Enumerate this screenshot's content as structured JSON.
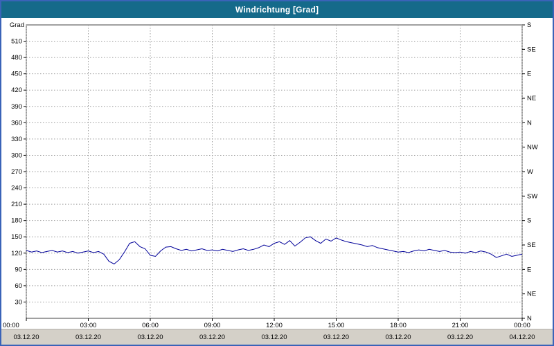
{
  "window": {
    "title": "Windrichtung [Grad]"
  },
  "colors": {
    "titlebar": "#156a8a",
    "frame_border": "#3a63b8",
    "plot_bg": "#ffffff",
    "plot_border": "#404040",
    "grid": "#9a9a9a",
    "line": "#000099",
    "footer_bg": "#d4d0c8",
    "text": "#000000"
  },
  "chart_data": {
    "type": "line",
    "title": "Windrichtung [Grad]",
    "unit_label": "Grad",
    "ylim": [
      0,
      540
    ],
    "grid": "dashed",
    "y_ticks_left": [
      510,
      480,
      450,
      420,
      390,
      360,
      330,
      300,
      270,
      240,
      210,
      180,
      150,
      120,
      90,
      60,
      30
    ],
    "y_ticks_right": [
      {
        "deg": 540,
        "label": "S"
      },
      {
        "deg": 495,
        "label": "SE"
      },
      {
        "deg": 450,
        "label": "E"
      },
      {
        "deg": 405,
        "label": "NE"
      },
      {
        "deg": 360,
        "label": "N"
      },
      {
        "deg": 315,
        "label": "NW"
      },
      {
        "deg": 270,
        "label": "W"
      },
      {
        "deg": 225,
        "label": "SW"
      },
      {
        "deg": 180,
        "label": "S"
      },
      {
        "deg": 135,
        "label": "SE"
      },
      {
        "deg": 90,
        "label": "E"
      },
      {
        "deg": 45,
        "label": "NE"
      },
      {
        "deg": 0,
        "label": "N"
      }
    ],
    "x_ticks": [
      {
        "hour": 0,
        "time": "00:00",
        "date": "03.12.20"
      },
      {
        "hour": 3,
        "time": "03:00",
        "date": "03.12.20"
      },
      {
        "hour": 6,
        "time": "06:00",
        "date": "03.12.20"
      },
      {
        "hour": 9,
        "time": "09:00",
        "date": "03.12.20"
      },
      {
        "hour": 12,
        "time": "12:00",
        "date": "03.12.20"
      },
      {
        "hour": 15,
        "time": "15:00",
        "date": "03.12.20"
      },
      {
        "hour": 18,
        "time": "18:00",
        "date": "03.12.20"
      },
      {
        "hour": 21,
        "time": "21:00",
        "date": "03.12.20"
      },
      {
        "hour": 24,
        "time": "00:00",
        "date": "04.12.20"
      }
    ],
    "x_range_hours": [
      0,
      24
    ],
    "sample_interval_minutes": 15,
    "series_name": "Windrichtung",
    "values": [
      125,
      122,
      124,
      121,
      123,
      125,
      122,
      124,
      121,
      123,
      120,
      122,
      124,
      121,
      123,
      118,
      105,
      100,
      108,
      122,
      138,
      141,
      132,
      128,
      116,
      114,
      124,
      131,
      132,
      128,
      125,
      127,
      124,
      126,
      128,
      125,
      126,
      124,
      127,
      125,
      123,
      126,
      128,
      125,
      127,
      130,
      135,
      132,
      138,
      141,
      136,
      143,
      133,
      140,
      148,
      150,
      143,
      138,
      146,
      142,
      148,
      144,
      141,
      139,
      137,
      135,
      132,
      134,
      130,
      128,
      126,
      124,
      122,
      123,
      121,
      124,
      126,
      124,
      127,
      125,
      123,
      125,
      122,
      121,
      122,
      120,
      123,
      121,
      124,
      122,
      118,
      112,
      115,
      118,
      114,
      116,
      118
    ]
  }
}
